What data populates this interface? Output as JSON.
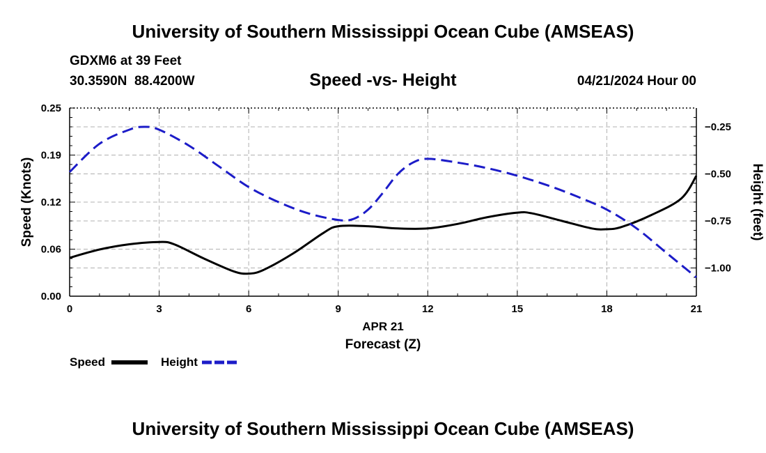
{
  "header": {
    "title": "University of Southern Mississippi Ocean Cube (AMSEAS)",
    "station": "GDXM6 at 39 Feet",
    "coords": "30.3590N  88.4200W",
    "subtitle": "Speed -vs- Height",
    "datetime": "04/21/2024 Hour 00"
  },
  "footer": {
    "title": "University of Southern Mississippi Ocean Cube (AMSEAS)"
  },
  "legend": {
    "speed_label": "Speed",
    "height_label": "Height"
  },
  "chart_data": {
    "type": "line",
    "title": "Speed -vs- Height",
    "xlabel": "Forecast (Z)",
    "xlabel_date": "APR 21",
    "ylabel": "Speed (Knots)",
    "y2label": "Height (feet)",
    "xlim": [
      0,
      21
    ],
    "ylim": [
      0,
      0.25
    ],
    "y2lim": [
      -1.15,
      -0.15
    ],
    "x_ticks": [
      0,
      3,
      6,
      9,
      12,
      15,
      18,
      21
    ],
    "x_tick_labels": [
      "0",
      "3",
      "6",
      "9",
      "12",
      "15",
      "18",
      "21"
    ],
    "y_ticks": [
      0,
      0.0625,
      0.125,
      0.1875,
      0.25
    ],
    "y_tick_labels": [
      "0.00",
      "0.06",
      "0.12",
      "0.19",
      "0.25"
    ],
    "y2_ticks": [
      -0.25,
      -0.5,
      -0.75,
      -1.0
    ],
    "y2_tick_labels": [
      "-0.25",
      "-0.50",
      "-0.75",
      "-1.00"
    ],
    "grid": true,
    "series": [
      {
        "name": "Speed",
        "axis": "left",
        "color": "#000000",
        "style": "solid",
        "x": [
          0,
          1,
          2,
          3,
          3.5,
          4.5,
          5.5,
          6,
          6.5,
          7.5,
          8.5,
          9,
          10,
          11,
          12,
          13,
          14,
          15,
          15.5,
          16.5,
          17.5,
          18,
          18.5,
          19.5,
          20.5,
          21
        ],
        "values": [
          0.051,
          0.062,
          0.069,
          0.072,
          0.069,
          0.05,
          0.033,
          0.03,
          0.035,
          0.057,
          0.084,
          0.093,
          0.093,
          0.09,
          0.09,
          0.096,
          0.105,
          0.111,
          0.11,
          0.1,
          0.09,
          0.089,
          0.092,
          0.108,
          0.13,
          0.16
        ]
      },
      {
        "name": "Height",
        "axis": "right",
        "color": "#1c1cc8",
        "style": "dashed",
        "x": [
          0,
          1,
          2,
          2.5,
          3,
          4,
          5,
          6,
          7,
          8,
          9,
          9.5,
          10,
          10.5,
          11,
          11.5,
          12,
          13,
          14,
          15,
          16,
          17,
          18,
          19,
          20,
          21
        ],
        "values": [
          -0.49,
          -0.34,
          -0.265,
          -0.25,
          -0.265,
          -0.35,
          -0.46,
          -0.57,
          -0.65,
          -0.71,
          -0.745,
          -0.74,
          -0.69,
          -0.6,
          -0.5,
          -0.44,
          -0.42,
          -0.44,
          -0.47,
          -0.51,
          -0.56,
          -0.62,
          -0.69,
          -0.79,
          -0.92,
          -1.05
        ]
      }
    ]
  }
}
